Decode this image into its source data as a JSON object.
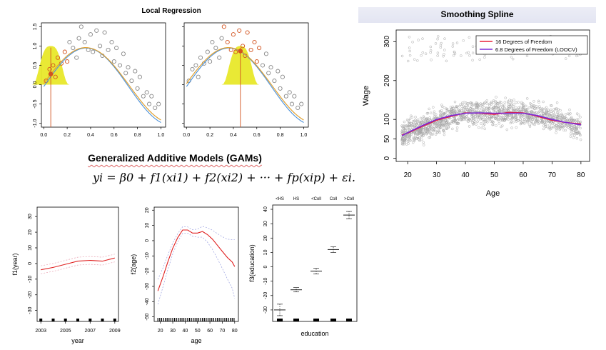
{
  "local_regression": {
    "title": "Local Regression",
    "x_ticks": [
      "0.0",
      "0.2",
      "0.4",
      "0.6",
      "0.8",
      "1.0"
    ],
    "y_ticks": [
      "-1.0",
      "-0.5",
      "0.0",
      "0.5",
      "1.0",
      "1.5"
    ]
  },
  "smoothing_spline": {
    "title": "Smoothing Spline",
    "xlabel": "Age",
    "ylabel": "Wage",
    "x_ticks": [
      "20",
      "30",
      "40",
      "50",
      "60",
      "70",
      "80"
    ],
    "y_ticks": [
      "0",
      "50",
      "100",
      "200",
      "300"
    ],
    "legend": [
      "16 Degrees of Freedom",
      "6.8 Degrees of Freedom (LOOCV)"
    ],
    "colors": {
      "df16": "#e8203a",
      "df68": "#7a2bd9"
    }
  },
  "gam": {
    "title": "Generalized Additive Models (GAMs)",
    "equation": "yi = β0 + f1(xi1) + f2(xi2) + ··· + fp(xip) + εi."
  },
  "year_plot": {
    "xlabel": "year",
    "ylabel": "f1(year)",
    "x_ticks": [
      "2003",
      "2005",
      "2007",
      "2009"
    ],
    "y_ticks": [
      "-30",
      "-20",
      "-10",
      "0",
      "10",
      "20",
      "30"
    ]
  },
  "age_plot": {
    "xlabel": "age",
    "ylabel": "f2(age)",
    "x_ticks": [
      "20",
      "30",
      "40",
      "50",
      "60",
      "70",
      "80"
    ],
    "y_ticks": [
      "-50",
      "-40",
      "-30",
      "-20",
      "-10",
      "0",
      "10",
      "20"
    ]
  },
  "edu_plot": {
    "xlabel": "education",
    "ylabel": "f3(education)",
    "top_labels": [
      "<HS",
      "HS",
      "<Coll",
      "Coll",
      ">Coll"
    ],
    "y_ticks": [
      "-30",
      "-20",
      "-10",
      "0",
      "10",
      "20",
      "30",
      "40"
    ]
  },
  "chart_data": [
    {
      "type": "scatter",
      "title": "Local Regression",
      "xlim": [
        0,
        1
      ],
      "ylim": [
        -1,
        1.5
      ],
      "series": [
        {
          "values_desc": "noisy sine points",
          "x": [
            0.02,
            0.05,
            0.08,
            0.1,
            0.12,
            0.15,
            0.18,
            0.2,
            0.22,
            0.25,
            0.28,
            0.3,
            0.32,
            0.35,
            0.38,
            0.4,
            0.42,
            0.45,
            0.48,
            0.5,
            0.52,
            0.55,
            0.58,
            0.6,
            0.62,
            0.65,
            0.68,
            0.7,
            0.72,
            0.75,
            0.78,
            0.8,
            0.82,
            0.85,
            0.88,
            0.9,
            0.92,
            0.95,
            0.98
          ],
          "y": [
            0.1,
            0.4,
            0.5,
            0.2,
            0.7,
            0.55,
            0.85,
            0.6,
            1.1,
            0.95,
            0.7,
            1.2,
            1.5,
            1.1,
            0.9,
            1.3,
            0.85,
            1.4,
            1.0,
            0.75,
            1.35,
            0.9,
            1.1,
            0.6,
            0.95,
            0.5,
            0.8,
            0.3,
            0.45,
            0.1,
            0.35,
            -0.1,
            0.2,
            -0.3,
            -0.2,
            -0.5,
            -0.3,
            -0.6,
            -0.5
          ]
        }
      ]
    },
    {
      "type": "scatter",
      "title": "Smoothing Spline",
      "xlabel": "Age",
      "ylabel": "Wage",
      "xlim": [
        18,
        80
      ],
      "ylim": [
        0,
        320
      ],
      "series": [
        {
          "name": "16 Degrees of Freedom",
          "x": [
            18,
            20,
            25,
            30,
            35,
            40,
            45,
            50,
            55,
            60,
            65,
            70,
            75,
            80
          ],
          "y": [
            60,
            65,
            82,
            98,
            108,
            117,
            116,
            113,
            118,
            117,
            108,
            98,
            92,
            88
          ]
        },
        {
          "name": "6.8 Degrees of Freedom (LOOCV)",
          "x": [
            18,
            20,
            25,
            30,
            35,
            40,
            45,
            50,
            55,
            60,
            65,
            70,
            75,
            80
          ],
          "y": [
            58,
            66,
            84,
            100,
            110,
            116,
            117,
            116,
            116,
            116,
            110,
            100,
            92,
            86
          ]
        }
      ]
    },
    {
      "type": "line",
      "xlabel": "year",
      "ylabel": "f1(year)",
      "xlim": [
        2003,
        2009
      ],
      "ylim": [
        -35,
        35
      ],
      "x": [
        2003,
        2004,
        2005,
        2006,
        2007,
        2008,
        2009
      ],
      "series": [
        {
          "values": [
            -4,
            -2.5,
            -0.5,
            1.5,
            2,
            1.5,
            3.5
          ]
        }
      ]
    },
    {
      "type": "line",
      "xlabel": "age",
      "ylabel": "f2(age)",
      "xlim": [
        18,
        82
      ],
      "ylim": [
        -52,
        22
      ],
      "x": [
        18,
        22,
        26,
        30,
        34,
        38,
        42,
        46,
        50,
        54,
        58,
        62,
        66,
        70,
        74,
        78,
        80
      ],
      "series": [
        {
          "values": [
            -33,
            -24,
            -14,
            -5,
            2,
            7,
            7,
            5,
            5,
            6,
            4,
            1,
            -3,
            -7,
            -11,
            -14,
            -17
          ]
        }
      ]
    },
    {
      "type": "scatter",
      "xlabel": "education",
      "ylabel": "f3(education)",
      "categories": [
        "<HS",
        "HS",
        "<Coll",
        "Coll",
        ">Coll"
      ],
      "ylim": [
        -38,
        42
      ],
      "series": [
        {
          "values": [
            -30,
            -16,
            -3,
            12,
            36
          ]
        }
      ]
    }
  ]
}
